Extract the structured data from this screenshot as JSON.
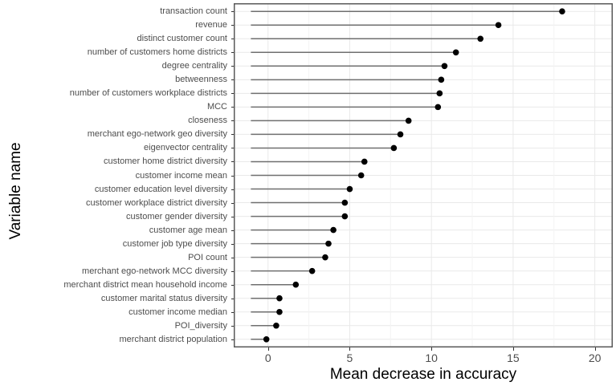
{
  "chart_data": {
    "type": "scatter",
    "style": "horizontal-lollipop-dot-plot",
    "title": "",
    "xlabel": "Mean decrease in accuracy",
    "ylabel": "Variable name",
    "categories": [
      "transaction count",
      "revenue",
      "distinct customer count",
      "number of customers home districts",
      "degree centrality",
      "betweenness",
      "number of customers workplace districts",
      "MCC",
      "closeness",
      "merchant ego-network geo diversity",
      "eigenvector centrality",
      "customer home district diversity",
      "customer income mean",
      "customer education level diversity",
      "customer workplace district diversity",
      "customer gender diversity",
      "customer age mean",
      "customer job type diversity",
      "POI count",
      "merchant ego-network MCC diversity",
      "merchant district mean household income",
      "customer marital status diversity",
      "customer income median",
      "POI_diversity",
      "merchant district population"
    ],
    "values": [
      18.0,
      14.1,
      13.0,
      11.5,
      10.8,
      10.6,
      10.5,
      10.4,
      8.6,
      8.1,
      7.7,
      5.9,
      5.7,
      5.0,
      4.7,
      4.7,
      4.0,
      3.7,
      3.5,
      2.7,
      1.7,
      0.7,
      0.7,
      0.5,
      -0.1
    ],
    "x_ticks": [
      0,
      5,
      10,
      15,
      20
    ],
    "x_minor_ticks": [
      2.5,
      7.5,
      12.5,
      17.5
    ],
    "xlim": [
      -2.1,
      21.1
    ],
    "segment_start": -1.05,
    "grid": true,
    "legend": "none",
    "colors": {
      "point": "#000000",
      "segment": "#6f6f6f",
      "grid_major": "#e9e9e9",
      "grid_minor": "#f3f3f3",
      "panel_border": "#595959",
      "tick_mark": "#333333",
      "tick_label": "#4d4d4d",
      "axis_title": "#000000",
      "background": "#ffffff"
    }
  }
}
